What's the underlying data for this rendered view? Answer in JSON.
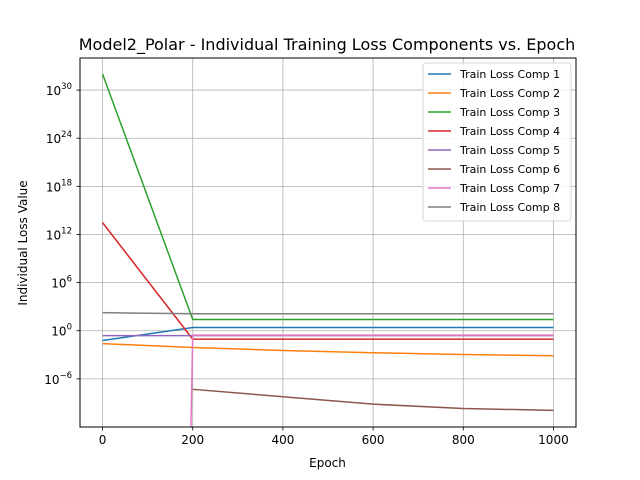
{
  "chart_data": {
    "type": "line",
    "title": "Model2_Polar - Individual Training Loss Components vs. Epoch",
    "xlabel": "Epoch",
    "ylabel": "Individual Loss Value",
    "x": [
      0,
      200,
      400,
      600,
      800,
      1000
    ],
    "xlim": [
      -50,
      1050
    ],
    "ylim": [
      1e-12,
      1e+34
    ],
    "yscale": "log",
    "grid": true,
    "legend_position": "top-right",
    "x_ticks": [
      "0",
      "200",
      "400",
      "600",
      "800",
      "1000"
    ],
    "y_ticks": [
      {
        "value": 1e-06,
        "base": "10",
        "exp": "−6"
      },
      {
        "value": 1,
        "base": "10",
        "exp": "0"
      },
      {
        "value": 1000000.0,
        "base": "10",
        "exp": "6"
      },
      {
        "value": 1000000000000.0,
        "base": "10",
        "exp": "12"
      },
      {
        "value": 1e+18,
        "base": "10",
        "exp": "18"
      },
      {
        "value": 1e+24,
        "base": "10",
        "exp": "24"
      },
      {
        "value": 1e+30,
        "base": "10",
        "exp": "30"
      }
    ],
    "series": [
      {
        "name": "Train Loss Comp 1",
        "color": "#1f77b4",
        "points": [
          [
            0,
            0.06
          ],
          [
            200,
            2.5
          ],
          [
            400,
            2.5
          ],
          [
            600,
            2.5
          ],
          [
            800,
            2.5
          ],
          [
            1000,
            2.5
          ]
        ]
      },
      {
        "name": "Train Loss Comp 2",
        "color": "#ff7f0e",
        "points": [
          [
            0,
            0.025
          ],
          [
            200,
            0.008
          ],
          [
            400,
            0.0035
          ],
          [
            600,
            0.0018
          ],
          [
            800,
            0.0011
          ],
          [
            1000,
            0.00075
          ]
        ]
      },
      {
        "name": "Train Loss Comp 3",
        "color": "#2ca02c",
        "points": [
          [
            0,
            1e+32
          ],
          [
            200,
            25
          ],
          [
            400,
            25
          ],
          [
            600,
            25
          ],
          [
            800,
            25
          ],
          [
            1000,
            25
          ]
        ]
      },
      {
        "name": "Train Loss Comp 4",
        "color": "#d62728",
        "points": [
          [
            0,
            30000000000000.0
          ],
          [
            200,
            0.09
          ],
          [
            400,
            0.09
          ],
          [
            600,
            0.09
          ],
          [
            800,
            0.09
          ],
          [
            1000,
            0.09
          ]
        ]
      },
      {
        "name": "Train Loss Comp 5",
        "color": "#9467bd",
        "points": [
          [
            0,
            0.25
          ],
          [
            200,
            0.25
          ],
          [
            400,
            0.25
          ],
          [
            600,
            0.25
          ],
          [
            800,
            0.25
          ],
          [
            1000,
            0.25
          ]
        ]
      },
      {
        "name": "Train Loss Comp 6",
        "color": "#8c564b",
        "points": [
          [
            200,
            5e-08
          ],
          [
            400,
            6e-09
          ],
          [
            600,
            7e-10
          ],
          [
            800,
            2e-10
          ],
          [
            1000,
            1.2e-10
          ]
        ]
      },
      {
        "name": "Train Loss Comp 7",
        "color": "#e377c2",
        "points": [
          [
            196,
            1e-12
          ],
          [
            200,
            0.28
          ],
          [
            400,
            0.28
          ],
          [
            600,
            0.28
          ],
          [
            800,
            0.28
          ],
          [
            1000,
            0.28
          ]
        ]
      },
      {
        "name": "Train Loss Comp 8",
        "color": "#7f7f7f",
        "points": [
          [
            0,
            180
          ],
          [
            200,
            130
          ],
          [
            400,
            130
          ],
          [
            600,
            130
          ],
          [
            800,
            130
          ],
          [
            1000,
            130
          ]
        ]
      }
    ]
  }
}
